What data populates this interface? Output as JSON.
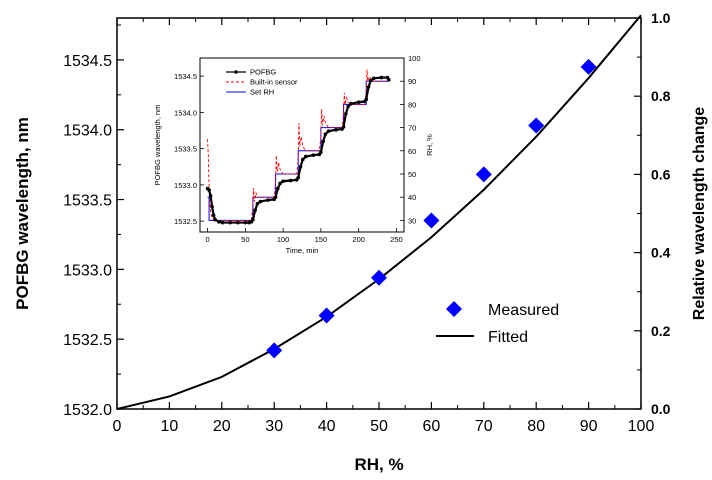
{
  "chart_data": [
    {
      "type": "scatter",
      "xlabel": "RH, %",
      "ylabel": "POFBG wavelength, nm",
      "y2label": "Relative wavelength change",
      "xlim": [
        0,
        100
      ],
      "ylim": [
        1532.0,
        1534.8
      ],
      "y2lim": [
        0.0,
        1.0
      ],
      "xticks": [
        "0",
        "10",
        "20",
        "30",
        "40",
        "50",
        "60",
        "70",
        "80",
        "90",
        "100"
      ],
      "yticks": [
        "1532.0",
        "1532.5",
        "1533.0",
        "1533.5",
        "1534.0",
        "1534.5"
      ],
      "y2ticks": [
        "0.0",
        "0.2",
        "0.4",
        "0.6",
        "0.8",
        "1.0"
      ],
      "legend_position": "center-right",
      "series": [
        {
          "name": "Measured",
          "kind": "marker",
          "marker": "diamond",
          "color": "#0000ff",
          "x": [
            30,
            40,
            50,
            60,
            70,
            80,
            90
          ],
          "y": [
            1532.42,
            1532.67,
            1532.94,
            1533.35,
            1533.68,
            1534.03,
            1534.45
          ]
        },
        {
          "name": "Fitted",
          "kind": "line",
          "color": "#000000",
          "x": [
            0,
            10,
            20,
            30,
            40,
            50,
            60,
            70,
            80,
            90,
            100
          ],
          "y": [
            1532.0,
            1532.09,
            1532.23,
            1532.43,
            1532.66,
            1532.93,
            1533.23,
            1533.57,
            1533.95,
            1534.37,
            1534.82
          ]
        }
      ]
    },
    {
      "type": "line",
      "role": "inset",
      "xlabel": "Time, min",
      "ylabel": "POFBG wavelength, nm",
      "y2label": "RH, %",
      "xlim": [
        -10,
        260
      ],
      "ylim": [
        1532.35,
        1534.75
      ],
      "y2lim": [
        25,
        100
      ],
      "xticks": [
        "0",
        "50",
        "100",
        "150",
        "200",
        "250"
      ],
      "yticks": [
        "1532.5",
        "1533.0",
        "1533.5",
        "1534.0",
        "1534.5"
      ],
      "y2ticks": [
        "30",
        "40",
        "50",
        "60",
        "70",
        "80",
        "90",
        "100"
      ],
      "legend_position": "top-left",
      "series": [
        {
          "name": "POFBG",
          "axis": "left",
          "color": "#000000",
          "x": [
            0,
            2,
            4,
            6,
            8,
            10,
            15,
            20,
            30,
            40,
            50,
            55,
            58,
            60,
            63,
            66,
            70,
            80,
            88,
            90,
            93,
            96,
            100,
            110,
            118,
            120,
            123,
            126,
            130,
            140,
            148,
            150,
            153,
            156,
            160,
            170,
            178,
            180,
            183,
            186,
            190,
            200,
            208,
            210,
            213,
            216,
            220,
            230,
            238,
            240
          ],
          "y": [
            1532.95,
            1532.93,
            1532.85,
            1532.7,
            1532.58,
            1532.52,
            1532.49,
            1532.48,
            1532.48,
            1532.48,
            1532.48,
            1532.48,
            1532.49,
            1532.52,
            1532.65,
            1532.74,
            1532.77,
            1532.79,
            1532.8,
            1532.83,
            1532.95,
            1533.02,
            1533.05,
            1533.06,
            1533.07,
            1533.1,
            1533.25,
            1533.35,
            1533.39,
            1533.41,
            1533.42,
            1533.45,
            1533.6,
            1533.7,
            1533.74,
            1533.76,
            1533.77,
            1533.8,
            1533.98,
            1534.08,
            1534.12,
            1534.14,
            1534.15,
            1534.18,
            1534.35,
            1534.44,
            1534.47,
            1534.48,
            1534.48,
            1534.45
          ]
        },
        {
          "name": "Built-in sensor",
          "axis": "right",
          "color": "#ff0000",
          "dash": "3,2",
          "x": [
            0,
            1,
            2,
            3,
            5,
            8,
            12,
            20,
            40,
            58,
            60,
            61,
            62,
            64,
            66,
            70,
            88,
            90,
            91,
            92,
            94,
            96,
            100,
            118,
            120,
            121,
            122,
            124,
            126,
            130,
            148,
            150,
            151,
            152,
            154,
            156,
            160,
            178,
            180,
            181,
            182,
            184,
            186,
            190,
            208,
            210,
            211,
            212,
            214,
            216,
            220,
            238,
            240
          ],
          "y": [
            65,
            58,
            45,
            36,
            32,
            30,
            30,
            30,
            30,
            30,
            36,
            44,
            38,
            42,
            40,
            40,
            40,
            46,
            58,
            51,
            55,
            52,
            50,
            50,
            56,
            72,
            62,
            66,
            62,
            60,
            60,
            66,
            78,
            71,
            75,
            72,
            70,
            70,
            76,
            85,
            80,
            83,
            81,
            80,
            80,
            86,
            95,
            90,
            92,
            91,
            90,
            90,
            90
          ]
        },
        {
          "name": "Set RH",
          "axis": "right",
          "color": "#0000ff",
          "x": [
            0,
            2,
            2,
            60,
            60,
            90,
            90,
            120,
            120,
            150,
            150,
            180,
            180,
            210,
            210,
            240
          ],
          "y": [
            40,
            40,
            30,
            30,
            40,
            40,
            50,
            50,
            60,
            60,
            70,
            70,
            80,
            80,
            90,
            90
          ]
        }
      ]
    }
  ]
}
